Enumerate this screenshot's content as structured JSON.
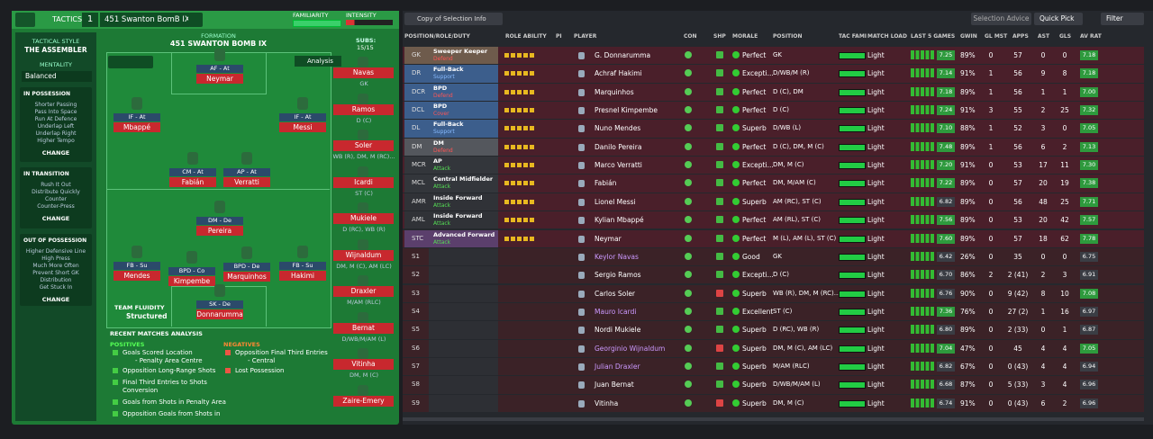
{
  "header": {
    "tactics": "TACTICS",
    "slot": "1",
    "tactic_name": "451 Swanton BomB  IX",
    "familiarity": "FAMILIARITY",
    "intensity": "INTENSITY"
  },
  "sidebar": {
    "style_label": "TACTICAL STYLE",
    "style": "THE ASSEMBLER",
    "mentality_label": "MENTALITY",
    "mentality": "Balanced",
    "sections": [
      {
        "title": "IN POSSESSION",
        "items": [
          "Shorter Passing",
          "Pass Into Space",
          "Run At Defence",
          "Underlap Left",
          "Underlap Right",
          "Higher Tempo"
        ],
        "action": "CHANGE"
      },
      {
        "title": "IN TRANSITION",
        "items": [
          "Rush It Out",
          "Distribute Quickly",
          "Counter",
          "Counter-Press"
        ],
        "action": "CHANGE"
      },
      {
        "title": "OUT OF POSSESSION",
        "items": [
          "Higher Defensive Line",
          "High Press",
          "Much More Often",
          "Prevent Short GK",
          "Distribution",
          "Get Stuck In"
        ],
        "action": "CHANGE"
      }
    ]
  },
  "formation": {
    "label": "FORMATION",
    "name": "451 SWANTON BOMB IX",
    "subs_label": "SUBS:",
    "subs_count": "15/15",
    "analysis": "Analysis",
    "fluidity_label": "TEAM FLUIDITY",
    "fluidity": "Structured",
    "players": [
      {
        "role": "AF - At",
        "name": "Neymar"
      },
      {
        "role": "IF - At",
        "name": "Mbappé"
      },
      {
        "role": "IF - At",
        "name": "Messi"
      },
      {
        "role": "CM - At",
        "name": "Fabián"
      },
      {
        "role": "AP - At",
        "name": "Verratti"
      },
      {
        "role": "DM - De",
        "name": "Pereira"
      },
      {
        "role": "FB - Su",
        "name": "Mendes"
      },
      {
        "role": "BPD - Co",
        "name": "Kimpembe"
      },
      {
        "role": "BPD - De",
        "name": "Marquinhos"
      },
      {
        "role": "FB - Su",
        "name": "Hakimi"
      },
      {
        "role": "SK - De",
        "name": "Donnarumma"
      }
    ],
    "subs": [
      {
        "name": "Navas",
        "position": "GK"
      },
      {
        "name": "Ramos",
        "position": "D (C)"
      },
      {
        "name": "Soler",
        "position": "WB (R), DM, M (RC)..."
      },
      {
        "name": "Icardi",
        "position": "ST (C)"
      },
      {
        "name": "Mukiele",
        "position": "D (RC), WB (R)"
      },
      {
        "name": "Wijnaldum",
        "position": "DM, M (C), AM (LC)"
      },
      {
        "name": "Draxler",
        "position": "M/AM (RLC)"
      },
      {
        "name": "Bernat",
        "position": "D/WB/M/AM (L)"
      },
      {
        "name": "Vitinha",
        "position": "DM, M (C)"
      },
      {
        "name": "Zaire-Emery",
        "position": ""
      }
    ]
  },
  "recent": {
    "title": "RECENT MATCHES ANALYSIS",
    "positives_label": "POSITIVES",
    "positives": [
      "Goals Scored Location",
      "- Penalty Area Centre",
      "Opposition Long-Range Shots",
      "Final Third Entries to Shots",
      "Conversion",
      "Goals from Shots in Penalty Area",
      "Opposition Goals from Shots in"
    ],
    "negatives_label": "NEGATIVES",
    "negatives": [
      "Opposition Final Third Entries",
      "- Central",
      "Lost Possession"
    ]
  },
  "toolbar": {
    "view": "Copy of Selection Info",
    "advice": "Selection Advice",
    "quick_pick": "Quick Pick",
    "filter": "Filter"
  },
  "table": {
    "columns": [
      "POSITION/ROLE/DUTY",
      "ROLE ABILITY",
      "PI",
      "PLAYER",
      "CON",
      "SHP",
      "MORALE",
      "POSITION",
      "TAC FAMI",
      "MATCH LOAD",
      "LAST 5 GAMES",
      "GWIN",
      "GL MST",
      "APPS",
      "AST",
      "GLS",
      "AV RAT"
    ],
    "rows": [
      {
        "pos": "GK",
        "role": "Sweeper Keeper",
        "duty": "Defend",
        "player": "G. Donnarumma",
        "morale": "Perfect",
        "position": "GK",
        "load": "Light",
        "rating": "7.25",
        "gwin": "89%",
        "glmst": "0",
        "apps": "57",
        "ast": "0",
        "gls": "0",
        "avrat": "7.18"
      },
      {
        "pos": "DR",
        "role": "Full-Back",
        "duty": "Support",
        "player": "Achraf Hakimi",
        "morale": "Excepti...",
        "position": "D/WB/M (R)",
        "load": "Light",
        "rating": "7.14",
        "gwin": "91%",
        "glmst": "1",
        "apps": "56",
        "ast": "9",
        "gls": "8",
        "avrat": "7.18"
      },
      {
        "pos": "DCR",
        "role": "BPD",
        "duty": "Defend",
        "player": "Marquinhos",
        "morale": "Perfect",
        "position": "D (C), DM",
        "load": "Light",
        "rating": "7.18",
        "gwin": "89%",
        "glmst": "1",
        "apps": "56",
        "ast": "1",
        "gls": "1",
        "avrat": "7.00"
      },
      {
        "pos": "DCL",
        "role": "BPD",
        "duty": "Cover",
        "player": "Presnel Kimpembe",
        "morale": "Perfect",
        "position": "D (C)",
        "load": "Light",
        "rating": "7.24",
        "gwin": "91%",
        "glmst": "3",
        "apps": "55",
        "ast": "2",
        "gls": "25",
        "avrat": "7.32"
      },
      {
        "pos": "DL",
        "role": "Full-Back",
        "duty": "Support",
        "player": "Nuno Mendes",
        "morale": "Superb",
        "position": "D/WB (L)",
        "load": "Light",
        "rating": "7.10",
        "gwin": "88%",
        "glmst": "1",
        "apps": "52",
        "ast": "3",
        "gls": "0",
        "avrat": "7.05"
      },
      {
        "pos": "DM",
        "role": "DM",
        "duty": "Defend",
        "player": "Danilo Pereira",
        "morale": "Perfect",
        "position": "D (C), DM, M (C)",
        "load": "Light",
        "rating": "7.48",
        "gwin": "89%",
        "glmst": "1",
        "apps": "56",
        "ast": "6",
        "gls": "2",
        "avrat": "7.13"
      },
      {
        "pos": "MCR",
        "role": "AP",
        "duty": "Attack",
        "player": "Marco Verratti",
        "morale": "Excepti...",
        "position": "DM, M (C)",
        "load": "Light",
        "rating": "7.20",
        "gwin": "91%",
        "glmst": "0",
        "apps": "53",
        "ast": "17",
        "gls": "11",
        "avrat": "7.30"
      },
      {
        "pos": "MCL",
        "role": "Central Midfielder",
        "duty": "Attack",
        "player": "Fabián",
        "morale": "Perfect",
        "position": "DM, M/AM (C)",
        "load": "Light",
        "rating": "7.22",
        "gwin": "89%",
        "glmst": "0",
        "apps": "57",
        "ast": "20",
        "gls": "19",
        "avrat": "7.38"
      },
      {
        "pos": "AMR",
        "role": "Inside Forward",
        "duty": "Attack",
        "player": "Lionel Messi",
        "morale": "Superb",
        "position": "AM (RC), ST (C)",
        "load": "Light",
        "rating": "6.82",
        "gwin": "89%",
        "glmst": "0",
        "apps": "56",
        "ast": "48",
        "gls": "25",
        "avrat": "7.71"
      },
      {
        "pos": "AML",
        "role": "Inside Forward",
        "duty": "Attack",
        "player": "Kylian Mbappé",
        "morale": "Perfect",
        "position": "AM (RL), ST (C)",
        "load": "Light",
        "rating": "7.56",
        "gwin": "89%",
        "glmst": "0",
        "apps": "53",
        "ast": "20",
        "gls": "42",
        "avrat": "7.57"
      },
      {
        "pos": "STC",
        "role": "Advanced Forward",
        "duty": "Attack",
        "player": "Neymar",
        "morale": "Perfect",
        "position": "M (L), AM (L), ST (C)",
        "load": "Light",
        "rating": "7.60",
        "gwin": "89%",
        "glmst": "0",
        "apps": "57",
        "ast": "18",
        "gls": "62",
        "avrat": "7.78"
      },
      {
        "pos": "S1",
        "player": "Keylor Navas",
        "morale": "Good",
        "position": "GK",
        "load": "Light",
        "rating": "6.42",
        "gwin": "26%",
        "glmst": "0",
        "apps": "35",
        "ast": "0",
        "gls": "0",
        "avrat": "6.75"
      },
      {
        "pos": "S2",
        "player": "Sergio Ramos",
        "morale": "Excepti...",
        "position": "D (C)",
        "load": "Light",
        "rating": "6.70",
        "gwin": "86%",
        "glmst": "2",
        "apps": "2 (41)",
        "ast": "2",
        "gls": "3",
        "avrat": "6.91"
      },
      {
        "pos": "S3",
        "player": "Carlos Soler",
        "morale": "Superb",
        "position": "WB (R), DM, M (RC)...",
        "load": "Light",
        "rating": "6.76",
        "gwin": "90%",
        "glmst": "0",
        "apps": "9 (42)",
        "ast": "8",
        "gls": "10",
        "avrat": "7.08"
      },
      {
        "pos": "S4",
        "player": "Mauro Icardi",
        "morale": "Excellent",
        "position": "ST (C)",
        "load": "Light",
        "rating": "7.36",
        "gwin": "76%",
        "glmst": "0",
        "apps": "27 (2)",
        "ast": "1",
        "gls": "16",
        "avrat": "6.97"
      },
      {
        "pos": "S5",
        "player": "Nordi Mukiele",
        "morale": "Superb",
        "position": "D (RC), WB (R)",
        "load": "Light",
        "rating": "6.80",
        "gwin": "89%",
        "glmst": "0",
        "apps": "2 (33)",
        "ast": "0",
        "gls": "1",
        "avrat": "6.87"
      },
      {
        "pos": "S6",
        "player": "Georginio Wijnaldum",
        "morale": "Superb",
        "position": "DM, M (C), AM (LC)",
        "load": "Light",
        "rating": "7.04",
        "gwin": "47%",
        "glmst": "0",
        "apps": "45",
        "ast": "4",
        "gls": "4",
        "avrat": "7.05"
      },
      {
        "pos": "S7",
        "player": "Julian Draxler",
        "morale": "Superb",
        "position": "M/AM (RLC)",
        "load": "Light",
        "rating": "6.82",
        "gwin": "67%",
        "glmst": "0",
        "apps": "0 (43)",
        "ast": "4",
        "gls": "4",
        "avrat": "6.94"
      },
      {
        "pos": "S8",
        "player": "Juan Bernat",
        "morale": "Superb",
        "position": "D/WB/M/AM (L)",
        "load": "Light",
        "rating": "6.68",
        "gwin": "87%",
        "glmst": "0",
        "apps": "5 (33)",
        "ast": "3",
        "gls": "4",
        "avrat": "6.96"
      },
      {
        "pos": "S9",
        "player": "Vitinha",
        "morale": "Superb",
        "position": "DM, M (C)",
        "load": "Light",
        "rating": "6.74",
        "gwin": "91%",
        "glmst": "0",
        "apps": "0 (43)",
        "ast": "6",
        "gls": "2",
        "avrat": "6.96"
      }
    ]
  }
}
